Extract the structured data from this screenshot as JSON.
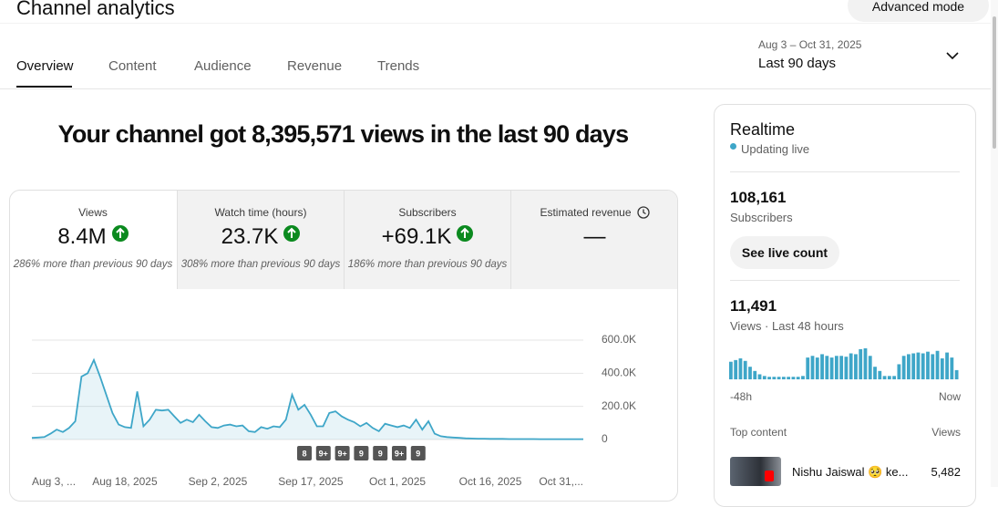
{
  "header": {
    "title": "Channel analytics",
    "advanced_mode": "Advanced mode"
  },
  "tabs": [
    "Overview",
    "Content",
    "Audience",
    "Revenue",
    "Trends"
  ],
  "date_range": {
    "range": "Aug 3 – Oct 31, 2025",
    "label": "Last 90 days"
  },
  "headline": "Your channel got 8,395,571 views in the last 90 days",
  "metrics": [
    {
      "label": "Views",
      "value": "8.4M",
      "note": "286% more than previous 90 days"
    },
    {
      "label": "Watch time (hours)",
      "value": "23.7K",
      "note": "308% more than previous 90 days"
    },
    {
      "label": "Subscribers",
      "value": "+69.1K",
      "note": "186% more than previous 90 days"
    },
    {
      "label": "Estimated revenue",
      "value": "—"
    }
  ],
  "chart_data": {
    "type": "line",
    "categories": [
      "Aug 3, ...",
      null,
      null,
      null,
      null,
      null,
      null,
      null,
      null,
      null,
      null,
      null,
      null,
      null,
      null,
      "Aug 18, 2025",
      null,
      null,
      null,
      null,
      null,
      null,
      null,
      null,
      null,
      null,
      null,
      null,
      null,
      null,
      "Sep 2, 2025",
      null,
      null,
      null,
      null,
      null,
      null,
      null,
      null,
      null,
      null,
      null,
      null,
      null,
      null,
      "Sep 17, 2025",
      null,
      null,
      null,
      null,
      null,
      null,
      null,
      null,
      null,
      null,
      null,
      null,
      null,
      "Oct 1, 2025",
      null,
      null,
      null,
      null,
      null,
      null,
      null,
      null,
      null,
      null,
      null,
      null,
      null,
      null,
      "Oct 16, 2025",
      null,
      null,
      null,
      null,
      null,
      null,
      null,
      null,
      null,
      null,
      null,
      null,
      null,
      null,
      "Oct 31,..."
    ],
    "series": [
      {
        "name": "Views",
        "color": "#3ea6c8",
        "values": [
          10000,
          12000,
          15000,
          35000,
          60000,
          45000,
          70000,
          110000,
          380000,
          400000,
          480000,
          380000,
          270000,
          160000,
          90000,
          75000,
          70000,
          290000,
          80000,
          120000,
          180000,
          175000,
          180000,
          140000,
          100000,
          120000,
          105000,
          150000,
          110000,
          75000,
          70000,
          85000,
          90000,
          80000,
          85000,
          50000,
          45000,
          75000,
          65000,
          80000,
          75000,
          120000,
          270000,
          180000,
          210000,
          150000,
          80000,
          80000,
          160000,
          170000,
          140000,
          120000,
          105000,
          80000,
          100000,
          70000,
          50000,
          95000,
          85000,
          75000,
          85000,
          70000,
          120000,
          60000,
          110000,
          35000,
          20000,
          15000,
          12000,
          10000,
          7000,
          6000,
          5000,
          5000,
          4000,
          4000,
          4000,
          3000,
          3000,
          3000,
          3000,
          3000,
          2000,
          2000,
          2000,
          2000,
          2000,
          2000,
          2000,
          2000
        ]
      }
    ],
    "ylim": [
      0,
      600000
    ],
    "yticks": [
      {
        "value": 0,
        "label": "0"
      },
      {
        "value": 200000,
        "label": "200.0K"
      },
      {
        "value": 400000,
        "label": "400.0K"
      },
      {
        "value": 600000,
        "label": "600.0K"
      }
    ],
    "grid": true,
    "badges": [
      "8",
      "9+",
      "9+",
      "9",
      "9",
      "9+",
      "9"
    ]
  },
  "realtime": {
    "title": "Realtime",
    "status": "Updating live",
    "subscribers": "108,161",
    "subscribers_label": "Subscribers",
    "button": "See live count",
    "views": "11,491",
    "views_label": "Views · Last 48 hours",
    "chart": {
      "color": "#3ea6c8",
      "values": [
        210,
        230,
        250,
        220,
        150,
        100,
        60,
        40,
        30,
        30,
        30,
        30,
        30,
        30,
        30,
        40,
        260,
        280,
        260,
        300,
        280,
        260,
        280,
        280,
        270,
        310,
        300,
        360,
        370,
        280,
        150,
        100,
        40,
        40,
        40,
        180,
        280,
        300,
        310,
        320,
        310,
        330,
        300,
        340,
        250,
        320,
        260,
        110
      ],
      "start_label": "-48h",
      "end_label": "Now"
    },
    "top_content_label": "Top content",
    "views_header": "Views",
    "top_content": [
      {
        "title": "Nishu Jaiswal 🥺 ke...",
        "views": "5,482"
      }
    ]
  }
}
